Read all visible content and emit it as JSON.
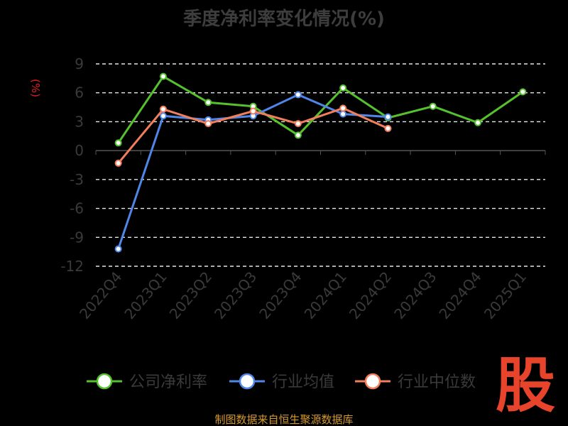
{
  "chart_data": {
    "type": "line",
    "title": "季度净利率变化情况(%)",
    "ylabel": "(%)",
    "categories": [
      "2022Q4",
      "2023Q1",
      "2023Q2",
      "2023Q3",
      "2023Q4",
      "2024Q1",
      "2024Q2",
      "2024Q3",
      "2024Q4",
      "2025Q1"
    ],
    "y_ticks": [
      9,
      6,
      3,
      0,
      -3,
      -6,
      -9,
      -12
    ],
    "ylim": [
      -12,
      9
    ],
    "grid": true,
    "legend_position": "bottom",
    "series": [
      {
        "name": "公司净利率",
        "color": "#55c12f",
        "values": [
          0.8,
          7.7,
          5.0,
          4.6,
          1.6,
          6.5,
          3.4,
          4.6,
          2.9,
          6.1
        ]
      },
      {
        "name": "行业均值",
        "color": "#4f86e8",
        "values": [
          -10.2,
          3.6,
          3.2,
          3.6,
          5.8,
          3.8,
          3.5,
          null,
          null,
          null
        ]
      },
      {
        "name": "行业中位数",
        "color": "#f27e5b",
        "values": [
          -1.3,
          4.3,
          2.8,
          4.1,
          2.8,
          4.4,
          2.3,
          null,
          null,
          null
        ]
      }
    ]
  },
  "footer": "制图数据来自恒生聚源数据库",
  "watermark": "股"
}
